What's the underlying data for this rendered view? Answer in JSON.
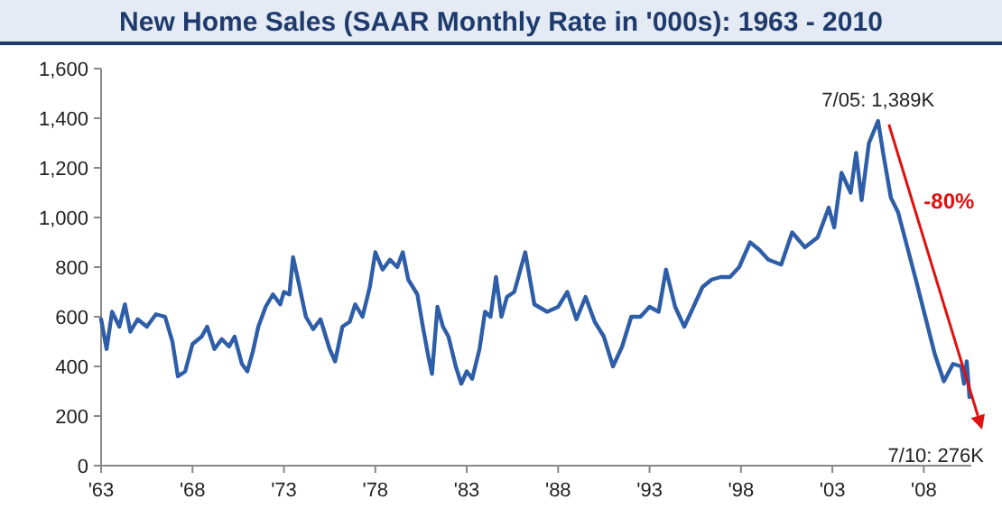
{
  "chart_data": {
    "type": "line",
    "title": "New Home Sales (SAAR Monthly Rate in '000s): 1963 - 2010",
    "x": [
      1963.0,
      1963.3,
      1963.6,
      1964.0,
      1964.3,
      1964.6,
      1965.0,
      1965.5,
      1966.0,
      1966.5,
      1966.9,
      1967.2,
      1967.6,
      1968.0,
      1968.5,
      1968.8,
      1969.2,
      1969.6,
      1970.0,
      1970.3,
      1970.7,
      1971.0,
      1971.3,
      1971.6,
      1972.0,
      1972.4,
      1972.8,
      1973.0,
      1973.3,
      1973.5,
      1973.8,
      1974.2,
      1974.6,
      1975.0,
      1975.5,
      1975.8,
      1976.2,
      1976.6,
      1976.9,
      1977.3,
      1977.7,
      1978.0,
      1978.4,
      1978.8,
      1979.2,
      1979.5,
      1979.8,
      1980.3,
      1980.6,
      1980.9,
      1981.1,
      1981.4,
      1981.7,
      1982.0,
      1982.4,
      1982.7,
      1983.0,
      1983.3,
      1983.7,
      1984.0,
      1984.3,
      1984.6,
      1984.9,
      1985.2,
      1985.6,
      1986.2,
      1986.7,
      1987.4,
      1988.0,
      1988.5,
      1989.0,
      1989.5,
      1990.0,
      1990.5,
      1991.0,
      1991.5,
      1992.0,
      1992.5,
      1993.0,
      1993.5,
      1993.9,
      1994.4,
      1994.9,
      1995.4,
      1995.9,
      1996.4,
      1996.9,
      1997.4,
      1997.9,
      1998.5,
      1999.0,
      1999.5,
      2000.2,
      2000.8,
      2001.5,
      2002.2,
      2002.8,
      2003.1,
      2003.5,
      2004.0,
      2004.3,
      2004.6,
      2005.0,
      2005.5,
      2005.8,
      2006.2,
      2006.6,
      2007.1,
      2007.6,
      2008.1,
      2008.6,
      2009.1,
      2009.6,
      2010.05,
      2010.2,
      2010.35,
      2010.5
    ],
    "values": [
      590,
      470,
      620,
      560,
      650,
      540,
      590,
      560,
      610,
      600,
      500,
      360,
      380,
      490,
      520,
      560,
      470,
      510,
      480,
      520,
      410,
      380,
      460,
      560,
      640,
      690,
      650,
      700,
      690,
      840,
      740,
      600,
      550,
      590,
      470,
      420,
      560,
      580,
      650,
      600,
      720,
      860,
      790,
      830,
      800,
      860,
      750,
      690,
      560,
      440,
      370,
      640,
      560,
      520,
      400,
      330,
      380,
      350,
      470,
      620,
      600,
      760,
      600,
      680,
      700,
      860,
      650,
      620,
      640,
      700,
      590,
      680,
      580,
      520,
      400,
      480,
      600,
      600,
      640,
      620,
      790,
      640,
      560,
      640,
      720,
      750,
      760,
      760,
      800,
      900,
      870,
      830,
      810,
      940,
      880,
      920,
      1040,
      960,
      1180,
      1100,
      1260,
      1070,
      1300,
      1389,
      1250,
      1080,
      1020,
      880,
      740,
      595,
      450,
      340,
      410,
      400,
      330,
      420,
      276
    ],
    "color": "#2f5ea8",
    "xlim": [
      1963,
      2010.6
    ],
    "xticks": [
      {
        "value": 1963,
        "label": "'63"
      },
      {
        "value": 1968,
        "label": "'68"
      },
      {
        "value": 1973,
        "label": "'73"
      },
      {
        "value": 1978,
        "label": "'78"
      },
      {
        "value": 1983,
        "label": "'83"
      },
      {
        "value": 1988,
        "label": "'88"
      },
      {
        "value": 1993,
        "label": "'93"
      },
      {
        "value": 1998,
        "label": "'98"
      },
      {
        "value": 2003,
        "label": "'03"
      },
      {
        "value": 2008,
        "label": "'08"
      }
    ],
    "ylim": [
      0,
      1600
    ],
    "yticks": [
      {
        "value": 0,
        "label": "0"
      },
      {
        "value": 200,
        "label": "200"
      },
      {
        "value": 400,
        "label": "400"
      },
      {
        "value": 600,
        "label": "600"
      },
      {
        "value": 800,
        "label": "800"
      },
      {
        "value": 1000,
        "label": "1,000"
      },
      {
        "value": 1200,
        "label": "1,200"
      },
      {
        "value": 1400,
        "label": "1,400"
      },
      {
        "value": 1600,
        "label": "1,600"
      }
    ],
    "grid": false,
    "annotations": [
      {
        "text": "7/05: 1,389K",
        "x": 2005.5,
        "y": 1389
      },
      {
        "text": "7/10: 276K",
        "x": 2010.5,
        "y": 276
      },
      "-80%"
    ]
  }
}
